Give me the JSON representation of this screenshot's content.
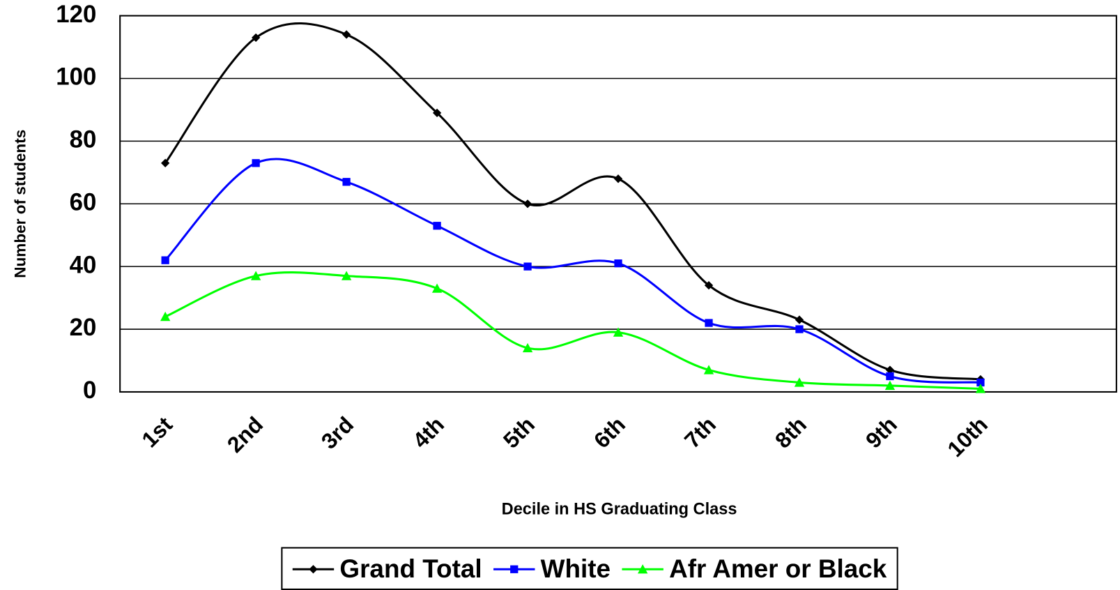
{
  "chart_data": {
    "type": "line",
    "x_label": "Decile in HS Graduating Class",
    "y_label": "Number of students",
    "categories": [
      "1st",
      "2nd",
      "3rd",
      "4th",
      "5th",
      "6th",
      "7th",
      "8th",
      "9th",
      "10th",
      null
    ],
    "series": [
      {
        "name": "Grand Total",
        "color": "#000000",
        "marker": "diamond",
        "values": [
          73,
          113,
          114,
          89,
          60,
          68,
          34,
          23,
          7,
          4,
          null
        ]
      },
      {
        "name": "White",
        "color": "#0000ff",
        "marker": "square",
        "values": [
          42,
          73,
          67,
          53,
          40,
          41,
          22,
          20,
          5,
          3,
          null
        ]
      },
      {
        "name": "Afr Amer or Black",
        "color": "#00ff00",
        "marker": "triangle",
        "values": [
          24,
          37,
          37,
          33,
          14,
          19,
          7,
          3,
          2,
          1,
          null
        ]
      }
    ],
    "ylim": [
      0,
      120
    ],
    "yticks": [
      0,
      20,
      40,
      60,
      80,
      100,
      120
    ],
    "grid": true,
    "smooth": true,
    "legend": "bottom"
  }
}
